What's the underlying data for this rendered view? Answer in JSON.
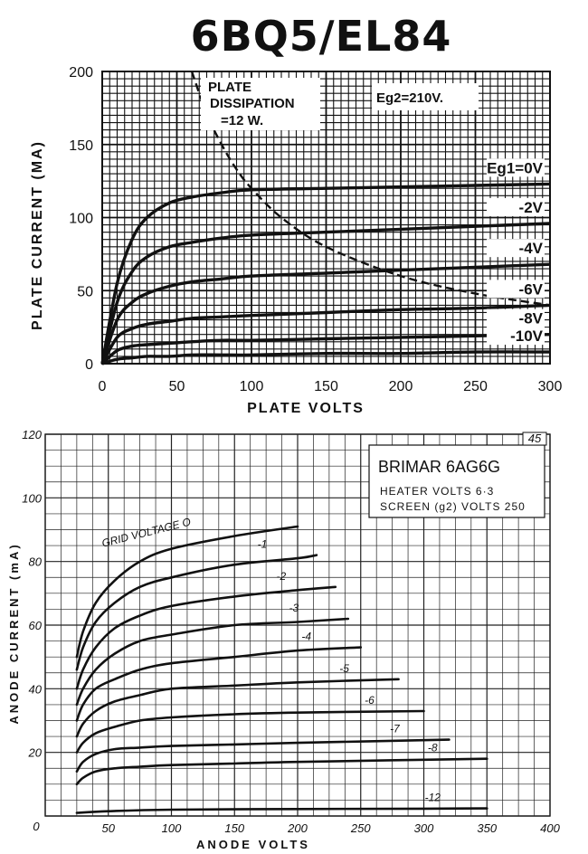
{
  "page_title": "6BQ5/EL84",
  "chart_data": [
    {
      "type": "line",
      "title": "",
      "xlabel": "PLATE VOLTS",
      "ylabel": "PLATE CURRENT (MA)",
      "xlim": [
        0,
        300
      ],
      "ylim": [
        0,
        200
      ],
      "xticks": [
        "0",
        "50",
        "100",
        "150",
        "200",
        "250",
        "300"
      ],
      "yticks": [
        "0",
        "50",
        "100",
        "150",
        "200"
      ],
      "grid": true,
      "annotations": {
        "screen_voltage": "Eg2=210V.",
        "dissipation_line1": "PLATE",
        "dissipation_line2": "DISSIPATION",
        "dissipation_line3": "=12 W."
      },
      "dissipation_curve": {
        "name": "PLATE DISSIPATION",
        "x": [
          60,
          70,
          80,
          90,
          100,
          120,
          150,
          200,
          250,
          300
        ],
        "y": [
          200,
          171,
          150,
          133,
          120,
          100,
          80,
          60,
          48,
          40
        ]
      },
      "series": [
        {
          "name": "Eg1=0V",
          "x": [
            0,
            10,
            20,
            30,
            45,
            60,
            80,
            100,
            150,
            200,
            250,
            300
          ],
          "y": [
            0,
            55,
            85,
            100,
            110,
            114,
            117,
            119,
            120,
            121,
            122,
            123
          ]
        },
        {
          "name": "-2V",
          "x": [
            0,
            10,
            20,
            30,
            45,
            60,
            80,
            100,
            150,
            200,
            250,
            300
          ],
          "y": [
            0,
            42,
            63,
            73,
            80,
            83,
            86,
            88,
            90,
            92,
            94,
            96
          ]
        },
        {
          "name": "-4V",
          "x": [
            0,
            10,
            20,
            30,
            45,
            60,
            80,
            100,
            150,
            200,
            250,
            300
          ],
          "y": [
            0,
            30,
            42,
            48,
            53,
            56,
            58,
            60,
            62,
            64,
            66,
            68
          ]
        },
        {
          "name": "-6V",
          "x": [
            0,
            10,
            20,
            30,
            45,
            60,
            80,
            100,
            150,
            200,
            250,
            300
          ],
          "y": [
            0,
            18,
            24,
            27,
            29,
            31,
            32,
            33,
            35,
            37,
            38,
            40
          ]
        },
        {
          "name": "-8V",
          "x": [
            0,
            10,
            20,
            30,
            45,
            60,
            80,
            100,
            150,
            200,
            250,
            300
          ],
          "y": [
            0,
            9,
            12,
            13,
            14,
            15,
            16,
            16,
            17,
            18,
            19,
            20
          ]
        },
        {
          "name": "-10V",
          "x": [
            0,
            10,
            20,
            30,
            45,
            60,
            80,
            100,
            150,
            200,
            250,
            300
          ],
          "y": [
            0,
            3,
            4,
            5,
            5,
            6,
            6,
            6,
            7,
            7,
            8,
            8
          ]
        }
      ]
    },
    {
      "type": "line",
      "title": "BRIMAR 6AG6G",
      "xlabel": "ANODE VOLTS",
      "ylabel": "ANODE CURRENT (mA)",
      "xlim": [
        0,
        400
      ],
      "ylim": [
        0,
        120
      ],
      "xticks": [
        "50",
        "100",
        "150",
        "200",
        "250",
        "300",
        "350",
        "400"
      ],
      "yticks": [
        "20",
        "40",
        "60",
        "80",
        "100",
        "120"
      ],
      "origin_label": "0",
      "grid": true,
      "corner_mark": "45",
      "info": {
        "name": "BRIMAR 6AG6G",
        "heater": "HEATER VOLTS 6·3",
        "screen": "SCREEN (g2) VOLTS 250"
      },
      "series": [
        {
          "name": "GRID VOLTAGE O",
          "x": [
            25,
            30,
            40,
            55,
            75,
            100,
            150,
            200
          ],
          "y": [
            50,
            58,
            67,
            74,
            80,
            84,
            88,
            91
          ]
        },
        {
          "name": "-1",
          "x": [
            25,
            30,
            40,
            55,
            75,
            100,
            150,
            200,
            215
          ],
          "y": [
            46,
            53,
            61,
            67,
            72,
            75,
            79,
            81,
            82
          ]
        },
        {
          "name": "-2",
          "x": [
            25,
            30,
            40,
            55,
            75,
            100,
            150,
            200,
            230
          ],
          "y": [
            40,
            46,
            53,
            59,
            63,
            66,
            69,
            71,
            72
          ]
        },
        {
          "name": "-3",
          "x": [
            25,
            30,
            40,
            55,
            75,
            100,
            150,
            200,
            240
          ],
          "y": [
            35,
            40,
            46,
            51,
            55,
            57,
            60,
            61,
            62
          ]
        },
        {
          "name": "-4",
          "x": [
            25,
            30,
            40,
            55,
            75,
            100,
            150,
            200,
            250
          ],
          "y": [
            30,
            35,
            40,
            43,
            46,
            48,
            50,
            52,
            53
          ]
        },
        {
          "name": "-5",
          "x": [
            25,
            30,
            40,
            55,
            75,
            100,
            150,
            200,
            280
          ],
          "y": [
            25,
            29,
            33,
            36,
            38,
            40,
            41,
            42,
            43
          ]
        },
        {
          "name": "-6",
          "x": [
            25,
            30,
            40,
            55,
            75,
            100,
            150,
            200,
            300
          ],
          "y": [
            20,
            23,
            26,
            28,
            30,
            31,
            32,
            32.5,
            33
          ]
        },
        {
          "name": "-7",
          "x": [
            25,
            30,
            40,
            55,
            75,
            100,
            150,
            200,
            320
          ],
          "y": [
            14,
            17,
            19.5,
            21,
            21.5,
            22,
            22.5,
            23,
            24
          ]
        },
        {
          "name": "-8",
          "x": [
            25,
            30,
            40,
            55,
            75,
            100,
            150,
            200,
            350
          ],
          "y": [
            10,
            12,
            14,
            15,
            15.5,
            16,
            16.5,
            17,
            18
          ]
        },
        {
          "name": "-12",
          "x": [
            25,
            50,
            100,
            200,
            300,
            350
          ],
          "y": [
            1,
            1.5,
            2,
            2.2,
            2.3,
            2.4
          ]
        }
      ]
    }
  ]
}
